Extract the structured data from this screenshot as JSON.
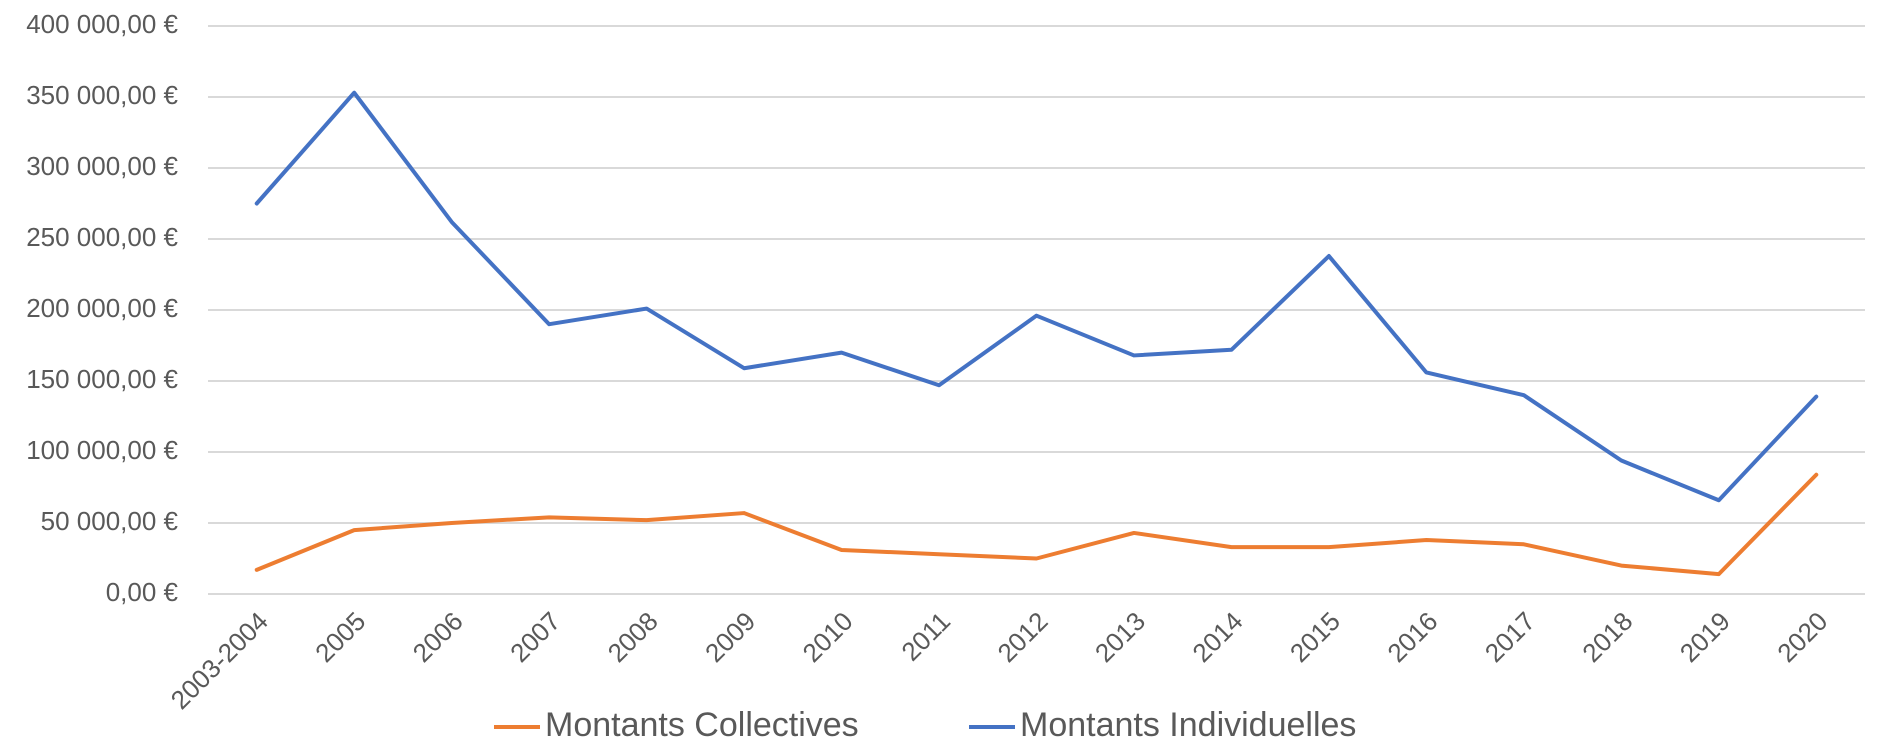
{
  "chart_data": {
    "type": "line",
    "categories": [
      "2003-2004",
      "2005",
      "2006",
      "2007",
      "2008",
      "2009",
      "2010",
      "2011",
      "2012",
      "2013",
      "2014",
      "2015",
      "2016",
      "2017",
      "2018",
      "2019",
      "2020"
    ],
    "series": [
      {
        "name": "Montants Collectives",
        "color": "#ed7d31",
        "values": [
          17000,
          45000,
          50000,
          54000,
          52000,
          57000,
          31000,
          28000,
          25000,
          43000,
          33000,
          33000,
          38000,
          35000,
          20000,
          14000,
          84000
        ]
      },
      {
        "name": "Montants Individuelles",
        "color": "#4472c4",
        "values": [
          275000,
          353000,
          262000,
          190000,
          201000,
          159000,
          170000,
          147000,
          196000,
          168000,
          172000,
          238000,
          156000,
          140000,
          94000,
          66000,
          139000
        ]
      }
    ],
    "ylim": [
      0,
      400000
    ],
    "yticks": [
      {
        "value": 0,
        "label": "0,00 €"
      },
      {
        "value": 50000,
        "label": "50 000,00 €"
      },
      {
        "value": 100000,
        "label": "100 000,00 €"
      },
      {
        "value": 150000,
        "label": "150 000,00 €"
      },
      {
        "value": 200000,
        "label": "200 000,00 €"
      },
      {
        "value": 250000,
        "label": "250 000,00 €"
      },
      {
        "value": 300000,
        "label": "300 000,00 €"
      },
      {
        "value": 350000,
        "label": "350 000,00 €"
      },
      {
        "value": 400000,
        "label": "400 000,00 €"
      }
    ],
    "grid": true,
    "legend": "bottom"
  }
}
